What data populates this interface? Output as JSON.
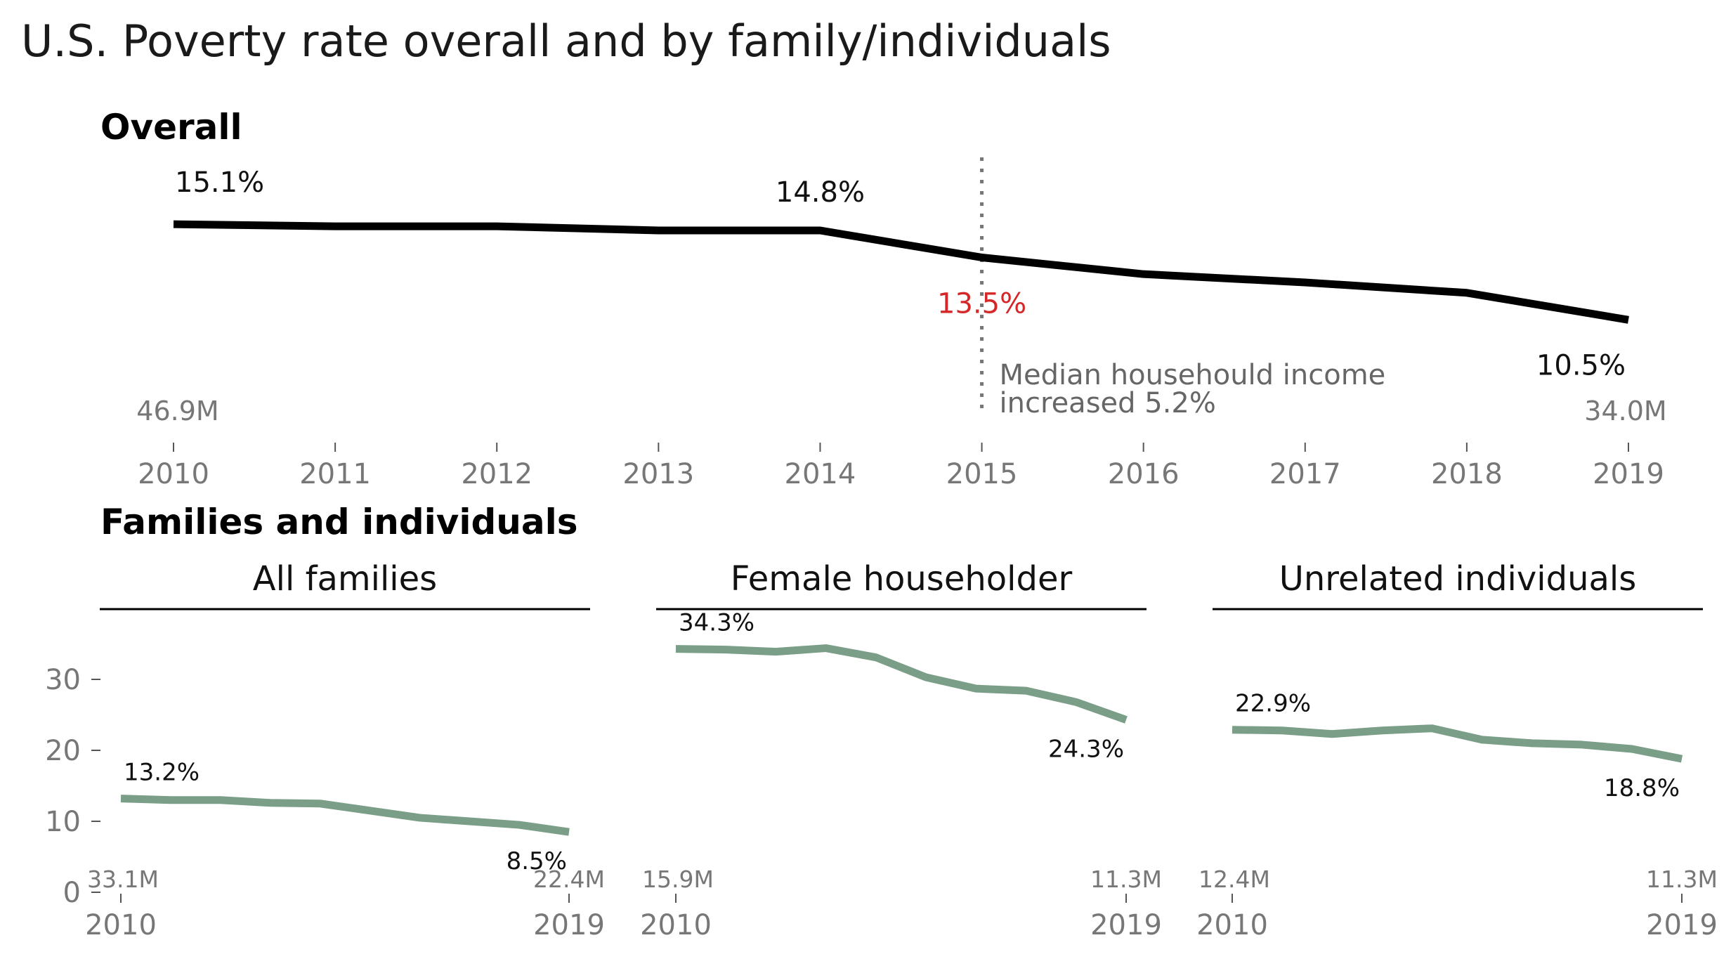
{
  "title": "U.S. Poverty rate overall and by family/individuals",
  "colors": {
    "overall_line": "#000000",
    "facet_line": "#7a9e87",
    "highlight": "#d62728",
    "vline": "#777777"
  },
  "chart_data": [
    {
      "type": "line",
      "title": "Overall",
      "x": [
        2010,
        2011,
        2012,
        2013,
        2014,
        2015,
        2016,
        2017,
        2018,
        2019
      ],
      "xticks": [
        "2010",
        "2011",
        "2012",
        "2013",
        "2014",
        "2015",
        "2016",
        "2017",
        "2018",
        "2019"
      ],
      "series": [
        {
          "values": [
            15.1,
            15.0,
            15.0,
            14.8,
            14.8,
            13.5,
            12.7,
            12.3,
            11.8,
            10.5
          ]
        }
      ],
      "ylim": [
        0,
        16
      ],
      "labels": {
        "start": "15.1%",
        "peak": "14.8%",
        "highlight": "13.5%",
        "end": "10.5%"
      },
      "counts": {
        "start": "46.9M",
        "end": "34.0M"
      },
      "annotation": {
        "line1": "Median househould income",
        "line2": "increased 5.2%",
        "x": 2015
      }
    },
    {
      "type": "line",
      "section_title": "Families and individuals",
      "facets": [
        {
          "title": "All families",
          "x": [
            2010,
            2011,
            2012,
            2013,
            2014,
            2015,
            2016,
            2017,
            2018,
            2019
          ],
          "values": [
            13.2,
            13.0,
            13.0,
            12.6,
            12.5,
            11.5,
            10.5,
            10.0,
            9.5,
            8.5
          ],
          "start_label": "13.2%",
          "end_label": "8.5%",
          "start_count": "33.1M",
          "end_count": "22.4M",
          "xticks": [
            "2010",
            "2019"
          ]
        },
        {
          "title": "Female householder",
          "x": [
            2010,
            2011,
            2012,
            2013,
            2014,
            2015,
            2016,
            2017,
            2018,
            2019
          ],
          "values": [
            34.3,
            34.2,
            33.9,
            34.4,
            33.1,
            30.3,
            28.7,
            28.4,
            26.8,
            24.3
          ],
          "start_label": "34.3%",
          "end_label": "24.3%",
          "start_count": "15.9M",
          "end_count": "11.3M",
          "xticks": [
            "2010",
            "2019"
          ]
        },
        {
          "title": "Unrelated individuals",
          "x": [
            2010,
            2011,
            2012,
            2013,
            2014,
            2015,
            2016,
            2017,
            2018,
            2019
          ],
          "values": [
            22.9,
            22.8,
            22.3,
            22.8,
            23.1,
            21.5,
            21.0,
            20.8,
            20.2,
            18.8
          ],
          "start_label": "22.9%",
          "end_label": "18.8%",
          "start_count": "12.4M",
          "end_count": "11.3M",
          "xticks": [
            "2010",
            "2019"
          ]
        }
      ],
      "yticks": [
        "0",
        "10",
        "20",
        "30"
      ],
      "ylim": [
        0,
        40
      ]
    }
  ]
}
